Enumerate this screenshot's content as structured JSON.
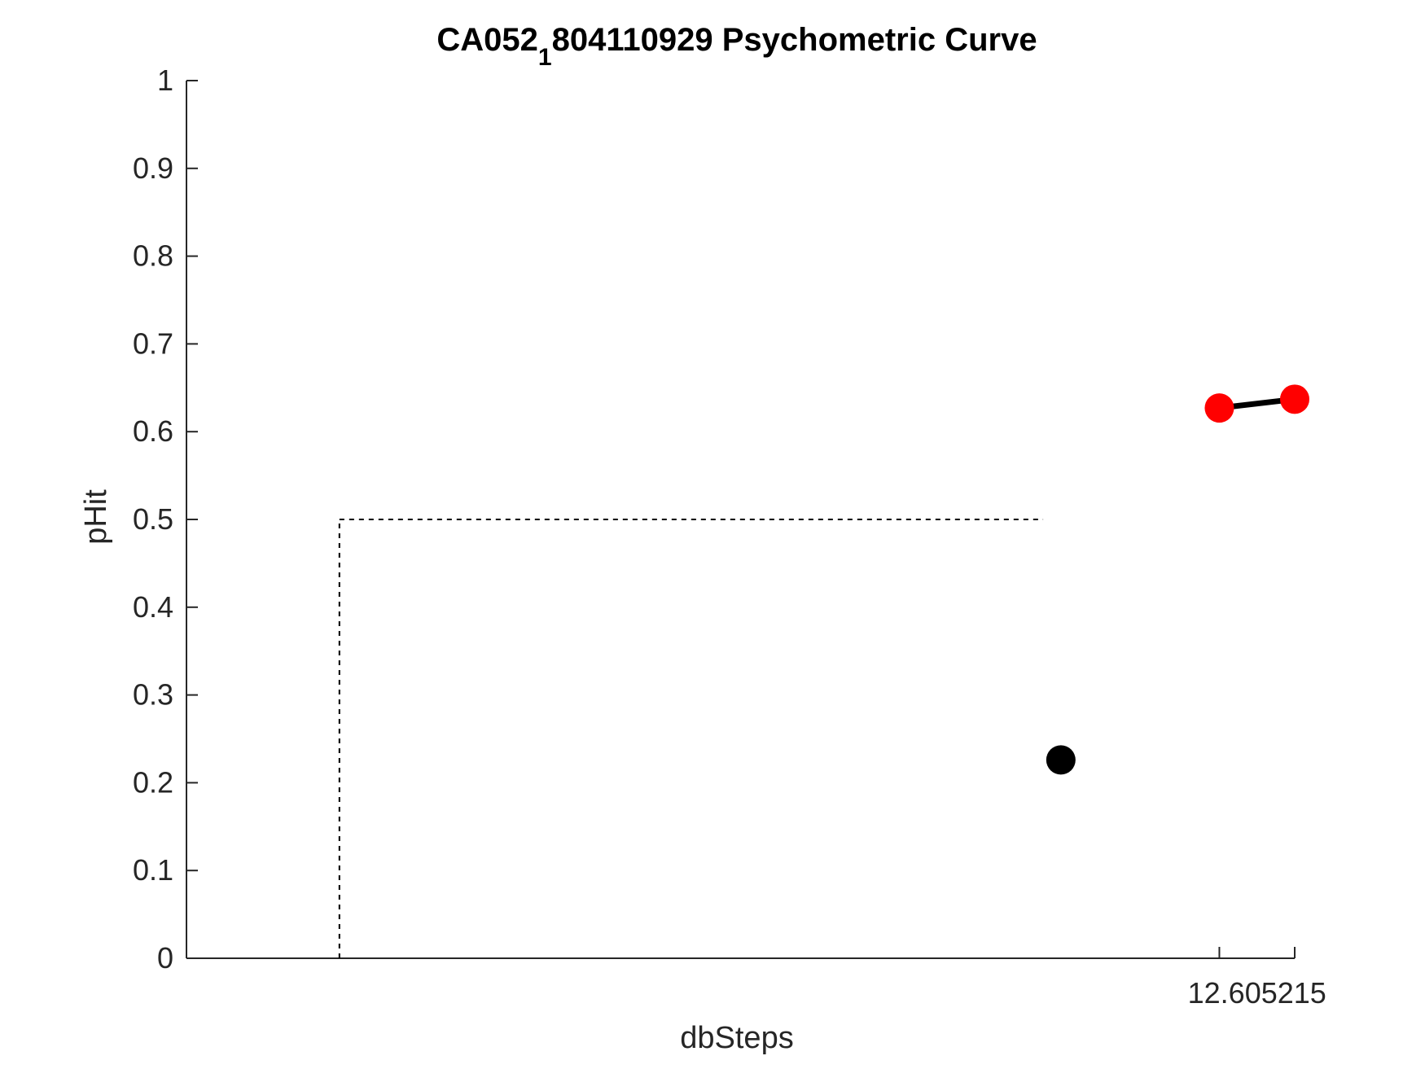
{
  "chart_data": {
    "type": "scatter",
    "title": {
      "prefix": "CA052",
      "subscript": "1",
      "suffix": "804110929 Psychometric Curve"
    },
    "xlabel": "dbSteps",
    "ylabel": "pHit",
    "ylim": [
      0,
      1
    ],
    "yticks": [
      0,
      0.1,
      0.2,
      0.3,
      0.4,
      0.5,
      0.6,
      0.7,
      0.8,
      0.9,
      1
    ],
    "ytick_labels": [
      "0",
      "0.1",
      "0.2",
      "0.3",
      "0.4",
      "0.5",
      "0.6",
      "0.7",
      "0.8",
      "0.9",
      "1"
    ],
    "xtick_labels": [
      "12.605215"
    ],
    "grid": false,
    "series": [
      {
        "color": "#ff0000",
        "line_color": "#000000",
        "connected": true,
        "points": [
          {
            "x_frac": 0.932,
            "y": 0.627
          },
          {
            "x_frac": 1.0,
            "y": 0.637
          }
        ]
      },
      {
        "color": "#000000",
        "connected": false,
        "points": [
          {
            "x_frac": 0.789,
            "y": 0.226
          }
        ]
      }
    ],
    "reference_lines": [
      {
        "style": "dashed",
        "color": "#000000",
        "kind": "threshold",
        "x_frac_start": 0.138,
        "x_frac_end": 0.773,
        "y": 0.5
      }
    ]
  }
}
